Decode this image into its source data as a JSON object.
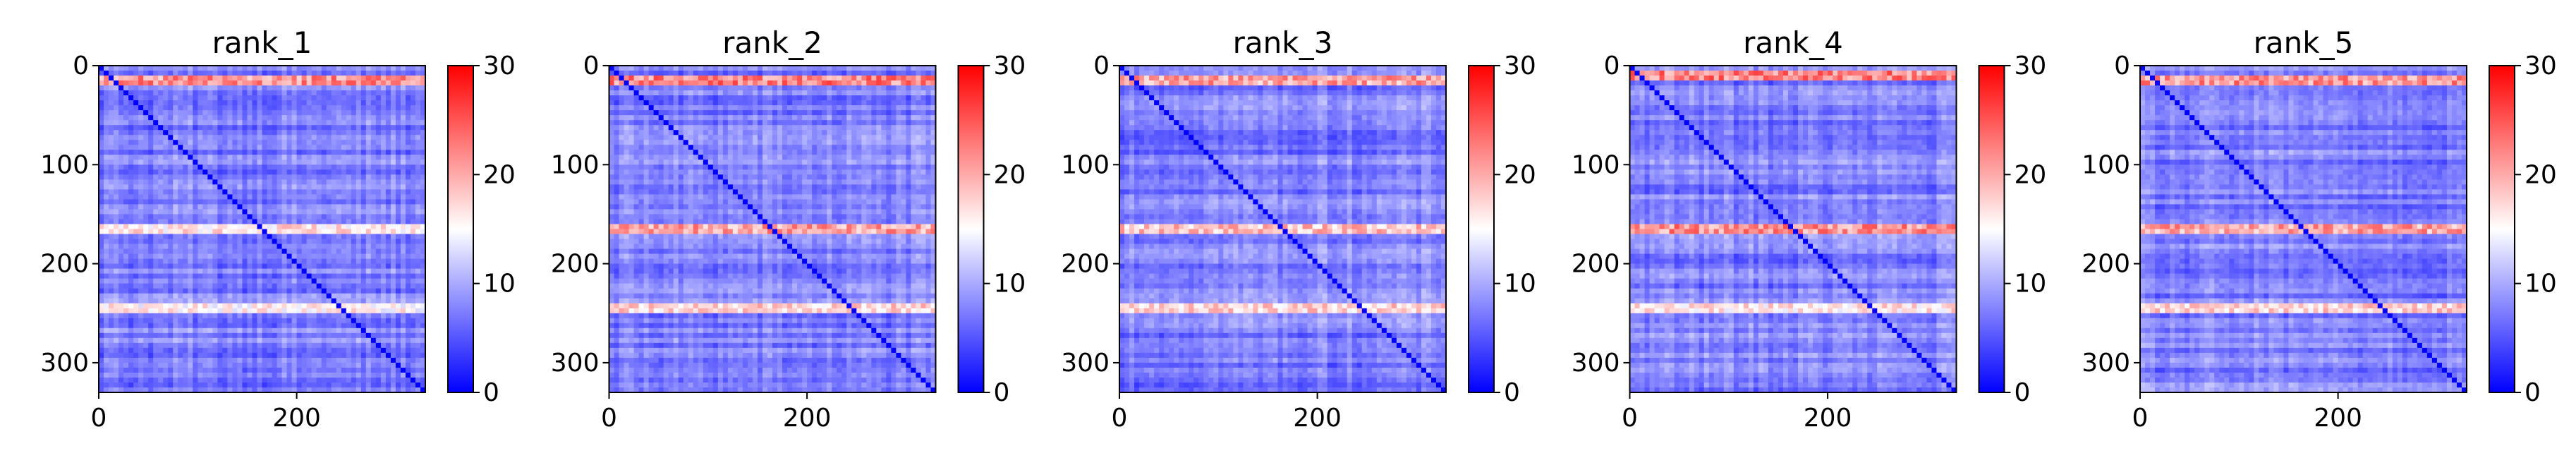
{
  "chart_data": [
    {
      "type": "heatmap",
      "title": "rank_1",
      "matrix_size": 330,
      "xlim": [
        0,
        330
      ],
      "ylim": [
        330,
        0
      ],
      "xticks": [
        0,
        200
      ],
      "yticks": [
        0,
        100,
        200,
        300
      ],
      "colorbar": {
        "min": 0,
        "max": 30,
        "ticks": [
          0,
          10,
          20,
          30
        ]
      },
      "baseline_value": 3,
      "high_rows": [
        {
          "row": 15,
          "value": 23
        },
        {
          "row": 163,
          "value": 18
        },
        {
          "row": 247,
          "value": 17
        }
      ],
      "grid": false
    },
    {
      "type": "heatmap",
      "title": "rank_2",
      "matrix_size": 330,
      "xlim": [
        0,
        330
      ],
      "ylim": [
        330,
        0
      ],
      "xticks": [
        0,
        200
      ],
      "yticks": [
        0,
        100,
        200,
        300
      ],
      "colorbar": {
        "min": 0,
        "max": 30,
        "ticks": [
          0,
          10,
          20,
          30
        ]
      },
      "baseline_value": 3,
      "high_rows": [
        {
          "row": 13,
          "value": 24
        },
        {
          "row": 163,
          "value": 22
        },
        {
          "row": 247,
          "value": 19
        }
      ],
      "grid": false
    },
    {
      "type": "heatmap",
      "title": "rank_3",
      "matrix_size": 330,
      "xlim": [
        0,
        330
      ],
      "ylim": [
        330,
        0
      ],
      "xticks": [
        0,
        200
      ],
      "yticks": [
        0,
        100,
        200,
        300
      ],
      "colorbar": {
        "min": 0,
        "max": 30,
        "ticks": [
          0,
          10,
          20,
          30
        ]
      },
      "baseline_value": 3,
      "high_rows": [
        {
          "row": 14,
          "value": 22
        },
        {
          "row": 163,
          "value": 20
        },
        {
          "row": 247,
          "value": 19
        }
      ],
      "grid": false
    },
    {
      "type": "heatmap",
      "title": "rank_4",
      "matrix_size": 330,
      "xlim": [
        0,
        330
      ],
      "ylim": [
        330,
        0
      ],
      "xticks": [
        0,
        200
      ],
      "yticks": [
        0,
        100,
        200,
        300
      ],
      "colorbar": {
        "min": 0,
        "max": 30,
        "ticks": [
          0,
          10,
          20,
          30
        ]
      },
      "baseline_value": 3,
      "high_rows": [
        {
          "row": 12,
          "value": 24
        },
        {
          "row": 163,
          "value": 23
        },
        {
          "row": 247,
          "value": 18
        }
      ],
      "grid": false
    },
    {
      "type": "heatmap",
      "title": "rank_5",
      "matrix_size": 330,
      "xlim": [
        0,
        330
      ],
      "ylim": [
        330,
        0
      ],
      "xticks": [
        0,
        200
      ],
      "yticks": [
        0,
        100,
        200,
        300
      ],
      "colorbar": {
        "min": 0,
        "max": 30,
        "ticks": [
          0,
          10,
          20,
          30
        ]
      },
      "baseline_value": 3,
      "high_rows": [
        {
          "row": 13,
          "value": 23
        },
        {
          "row": 163,
          "value": 22
        },
        {
          "row": 247,
          "value": 19
        }
      ],
      "grid": false
    }
  ],
  "colormap": {
    "name": "bwr",
    "low": "#0000ff",
    "mid": "#ffffff",
    "high": "#ff0000"
  }
}
